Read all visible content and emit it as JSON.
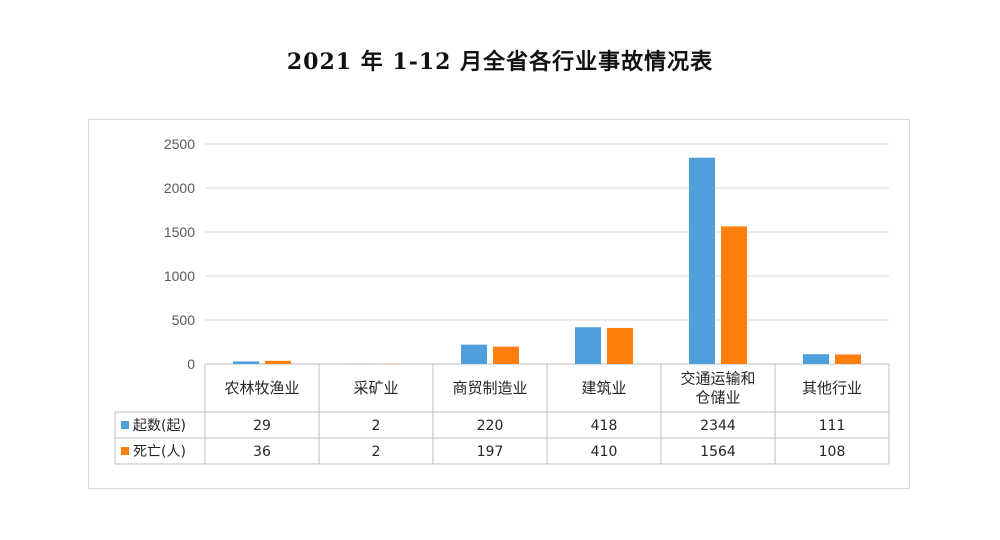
{
  "title": "2021 年 1-12 月全省各行业事故情况表",
  "colors": {
    "series1": "#4e9fdc",
    "series2": "#ff7f0e",
    "grid": "#d9d9d9",
    "axis": "#bfbfbf",
    "table_border": "#bfbfbf",
    "text": "#262626",
    "tick": "#595959"
  },
  "chart_data": {
    "type": "bar",
    "title": "2021 年 1-12 月全省各行业事故情况表",
    "categories": [
      [
        "农林牧渔业"
      ],
      [
        "采矿业"
      ],
      [
        "商贸制造业"
      ],
      [
        "建筑业"
      ],
      [
        "交通运输和",
        "仓储业"
      ],
      [
        "其他行业"
      ]
    ],
    "series": [
      {
        "name": "起数(起)",
        "values": [
          29,
          2,
          220,
          418,
          2344,
          111
        ]
      },
      {
        "name": "死亡(人)",
        "values": [
          36,
          2,
          197,
          410,
          1564,
          108
        ]
      }
    ],
    "ylim": [
      0,
      2500
    ],
    "yticks": [
      0,
      500,
      1000,
      1500,
      2000,
      2500
    ],
    "grid": true,
    "legend": "data-table"
  }
}
